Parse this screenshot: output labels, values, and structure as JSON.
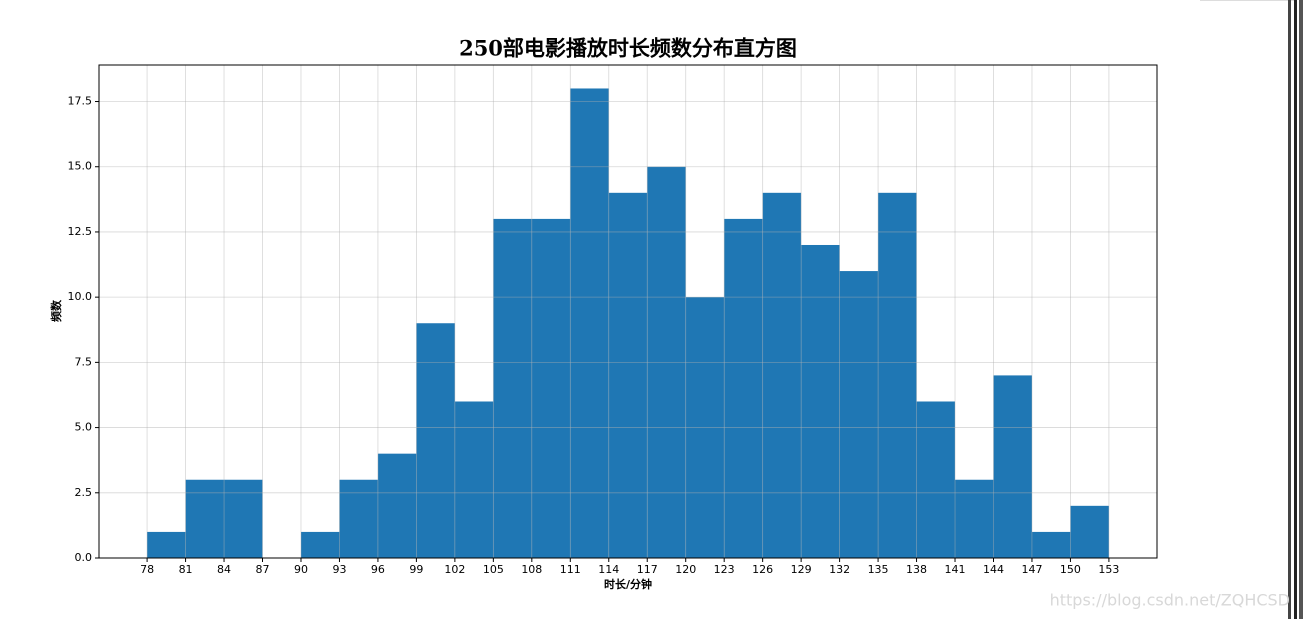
{
  "chart_data": {
    "type": "histogram",
    "title": "250部电影播放时长频数分布直方图",
    "x_label": "时长/分钟",
    "y_label": "频数",
    "bins": [
      78,
      81,
      84,
      87,
      90,
      93,
      96,
      99,
      102,
      105,
      108,
      111,
      114,
      117,
      120,
      123,
      126,
      129,
      132,
      135,
      138,
      141,
      144,
      147,
      150,
      153
    ],
    "values": [
      1,
      3,
      3,
      0,
      1,
      3,
      4,
      9,
      6,
      13,
      13,
      18,
      14,
      15,
      10,
      13,
      14,
      12,
      11,
      14,
      6,
      3,
      7,
      1,
      2
    ],
    "color": "#1f77b4",
    "xlim": [
      74.25,
      156.75
    ],
    "xticks": [
      78,
      81,
      84,
      87,
      90,
      93,
      96,
      99,
      102,
      105,
      108,
      111,
      114,
      117,
      120,
      123,
      126,
      129,
      132,
      135,
      138,
      141,
      144,
      147,
      150,
      153
    ],
    "ylim": [
      0,
      18.9
    ],
    "yticks": [
      {
        "value": 0,
        "label": "0.0"
      },
      {
        "value": 2.5,
        "label": "2.5"
      },
      {
        "value": 5,
        "label": "5.0"
      },
      {
        "value": 7.5,
        "label": "7.5"
      },
      {
        "value": 10,
        "label": "10.0"
      },
      {
        "value": 12.5,
        "label": "12.5"
      },
      {
        "value": 15,
        "label": "15.0"
      },
      {
        "value": 17.5,
        "label": "17.5"
      }
    ],
    "grid": true,
    "watermark": "https://blog.csdn.net/ZQHCSD"
  }
}
